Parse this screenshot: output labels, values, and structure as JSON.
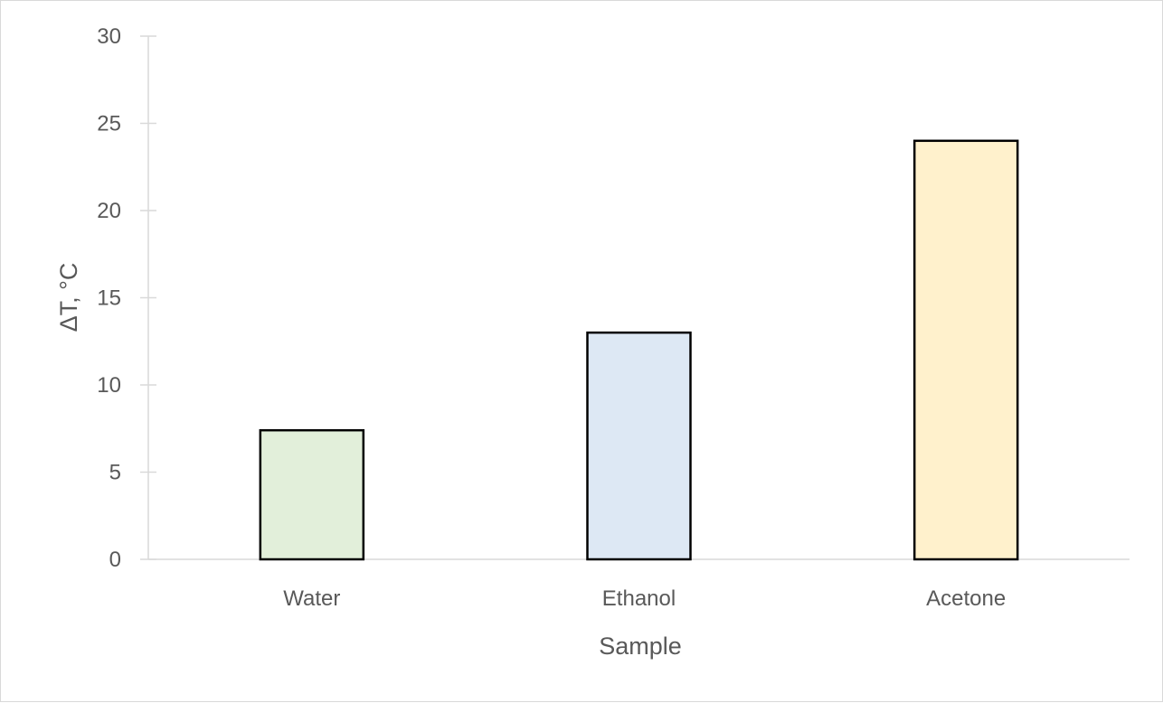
{
  "chart_data": {
    "type": "bar",
    "title": "",
    "categories": [
      "Water",
      "Ethanol",
      "Acetone"
    ],
    "values": [
      7.4,
      13,
      24
    ],
    "bar_colors": [
      "#e2efda",
      "#dde8f4",
      "#fff1cc"
    ],
    "bar_stroke": "#000000",
    "xlabel": "Sample",
    "ylabel": "ΔT, °C",
    "ylim": [
      0,
      30
    ],
    "yticks": [
      0,
      5,
      10,
      15,
      20,
      25,
      30
    ],
    "grid": false,
    "legend": "none",
    "axis_color": "#d9d9d9",
    "text_color": "#595959"
  }
}
